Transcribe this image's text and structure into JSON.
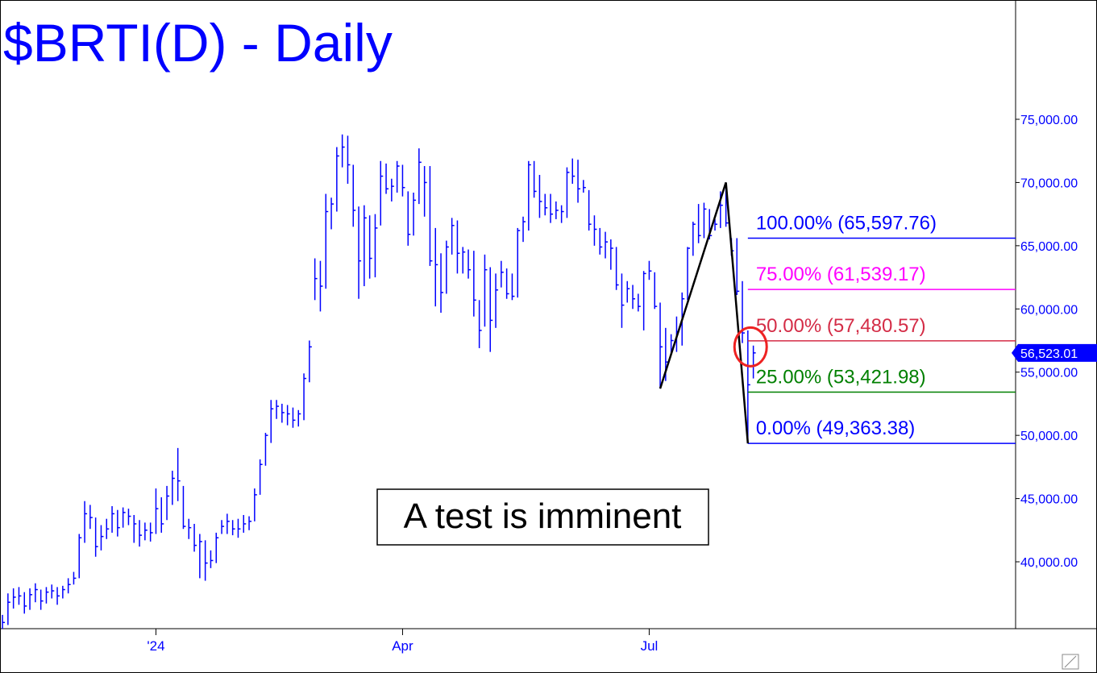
{
  "chart_data": {
    "type": "ohlc",
    "title": "$BRTI(D) - Daily",
    "annotation": "A test is imminent",
    "color": "#0000ff",
    "xlim": [
      -0.45,
      184.85
    ],
    "xticks": [
      {
        "value": 28,
        "label": "'24"
      },
      {
        "value": 73,
        "label": "Apr"
      },
      {
        "value": 118,
        "label": "Jul"
      }
    ],
    "ylim": [
      34710,
      84435
    ],
    "yticks": [
      {
        "value": 40000,
        "label": "40,000.00"
      },
      {
        "value": 45000,
        "label": "45,000.00"
      },
      {
        "value": 50000,
        "label": "50,000.00"
      },
      {
        "value": 55000,
        "label": "55,000.00"
      },
      {
        "value": 60000,
        "label": "60,000.00"
      },
      {
        "value": 65000,
        "label": "65,000.00"
      },
      {
        "value": 70000,
        "label": "70,000.00"
      },
      {
        "value": 75000,
        "label": "75,000.00"
      }
    ],
    "high": [
      35800,
      37500,
      37900,
      38000,
      37600,
      37900,
      38300,
      37800,
      38000,
      38200,
      38000,
      38100,
      38700,
      39200,
      42200,
      44800,
      44500,
      43500,
      42900,
      43400,
      44400,
      44100,
      44300,
      44200,
      43700,
      43300,
      43100,
      43100,
      45800,
      45100,
      46000,
      47200,
      49000,
      46000,
      43400,
      43000,
      42200,
      41700,
      40900,
      42300,
      43300,
      43800,
      43300,
      43400,
      43700,
      43600,
      45800,
      48100,
      50200,
      52800,
      52800,
      52500,
      52400,
      52200,
      52000,
      54900,
      57500,
      64000,
      63800,
      69100,
      68800,
      72800,
      73800,
      73700,
      71400,
      68100,
      68200,
      67400,
      67500,
      71700,
      71500,
      70300,
      71700,
      71400,
      69300,
      69200,
      72700,
      71300,
      71300,
      66400,
      64400,
      65400,
      67200,
      67000,
      64900,
      64700,
      64600,
      60700,
      64300,
      63300,
      62800,
      63800,
      63200,
      62800,
      66400,
      67300,
      71700,
      71700,
      70600,
      69100,
      69100,
      68500,
      68200,
      71200,
      71900,
      71800,
      70200,
      69400,
      67400,
      66400,
      66100,
      65500,
      64900,
      62800,
      62200,
      61900,
      61200,
      63000,
      63800,
      62900,
      60500,
      58500,
      58000,
      59400,
      61300,
      64900,
      66900,
      68300,
      68400,
      67900,
      67100,
      69300,
      70000,
      65600,
      65600,
      62200,
      58300,
      57100
    ],
    "low": [
      34700,
      35000,
      36300,
      36600,
      35900,
      36200,
      36800,
      36200,
      36700,
      37100,
      36600,
      37100,
      37500,
      38200,
      38700,
      41500,
      42600,
      40400,
      40900,
      41800,
      42300,
      42000,
      42700,
      42900,
      41500,
      41200,
      41700,
      41600,
      42200,
      42300,
      43300,
      44500,
      44800,
      42600,
      41800,
      40800,
      38700,
      38500,
      39500,
      39900,
      42200,
      42200,
      42100,
      41900,
      42300,
      42500,
      43200,
      45300,
      47600,
      49400,
      51300,
      51000,
      50800,
      50600,
      50700,
      51200,
      54200,
      60700,
      59800,
      61600,
      66300,
      67700,
      71200,
      69900,
      66500,
      60800,
      61800,
      62400,
      62500,
      66600,
      69100,
      68500,
      69200,
      68900,
      65000,
      65800,
      68300,
      67300,
      63400,
      60200,
      59700,
      61200,
      64300,
      62800,
      62800,
      62400,
      59400,
      56900,
      58600,
      56600,
      58500,
      61700,
      60800,
      60700,
      60900,
      65300,
      66200,
      68800,
      67200,
      67400,
      66800,
      67100,
      66800,
      67200,
      69900,
      68400,
      69200,
      66200,
      65000,
      64300,
      64000,
      63100,
      61500,
      58500,
      60500,
      60000,
      59800,
      58300,
      62300,
      60000,
      53700,
      54300,
      56400,
      56600,
      57100,
      60700,
      64200,
      65200,
      65600,
      65500,
      66200,
      66400,
      66500,
      64200,
      61100,
      57300,
      49364,
      54500
    ],
    "close": [
      35200,
      36800,
      37200,
      37300,
      36500,
      37400,
      37800,
      36900,
      37600,
      37700,
      37300,
      37800,
      38200,
      38700,
      41900,
      43800,
      43500,
      41200,
      42000,
      42600,
      43800,
      42700,
      43900,
      43600,
      43000,
      42100,
      42500,
      42300,
      44200,
      43000,
      45200,
      46600,
      46400,
      42800,
      42700,
      41300,
      41600,
      39900,
      40100,
      41900,
      42800,
      43200,
      42600,
      42600,
      43000,
      43200,
      45300,
      47700,
      50000,
      52100,
      52300,
      51800,
      51700,
      51200,
      51700,
      54500,
      57000,
      62400,
      61800,
      67700,
      68300,
      72100,
      72800,
      71400,
      67800,
      63800,
      67200,
      64000,
      66400,
      70500,
      69500,
      69700,
      71300,
      69600,
      65900,
      68600,
      71600,
      70000,
      63800,
      63500,
      61300,
      64900,
      66600,
      64400,
      64500,
      63100,
      60700,
      58300,
      63100,
      59100,
      61500,
      62900,
      61200,
      61000,
      66200,
      66900,
      71400,
      69300,
      68500,
      68000,
      67500,
      67800,
      67700,
      70800,
      70500,
      69500,
      69600,
      66700,
      66300,
      64900,
      65300,
      64800,
      61900,
      60300,
      61600,
      60800,
      60200,
      62800,
      63000,
      60200,
      57000,
      55800,
      57500,
      58200,
      60800,
      64800,
      66700,
      65800,
      67900,
      65800,
      66700,
      68200,
      66800,
      64600,
      61400,
      58100,
      54000,
      56523.01
    ],
    "last_price": {
      "value": 56523.01,
      "label": "56,523.01"
    },
    "pattern": {
      "bars": [
        120,
        132,
        136
      ],
      "values": [
        53700,
        70000,
        49363.38
      ],
      "color": "#000000"
    },
    "marker_circle": {
      "value": 57000,
      "bar": 136.5,
      "color": "#ee2222"
    },
    "levels": [
      {
        "value": 65597.76,
        "label": "100.00% (65,597.76)",
        "color": "#0000ff"
      },
      {
        "value": 61539.17,
        "label": "75.00% (61,539.17)",
        "color": "#ff00ff"
      },
      {
        "value": 57480.57,
        "label": "50.00% (57,480.57)",
        "color": "#d42c46"
      },
      {
        "value": 53421.98,
        "label": "25.00% (53,421.98)",
        "color": "#008000"
      },
      {
        "value": 49363.38,
        "label": "0.00% (49,363.38)",
        "color": "#0000ff"
      }
    ]
  }
}
